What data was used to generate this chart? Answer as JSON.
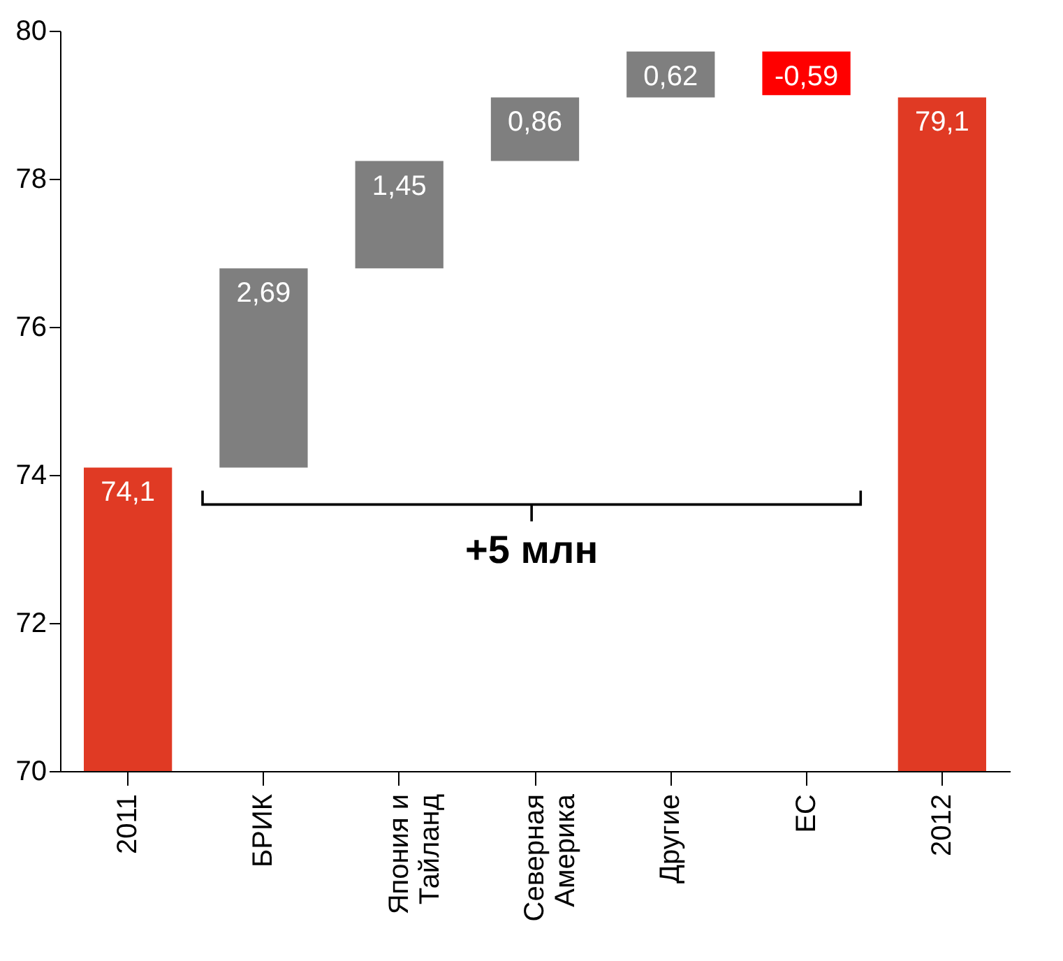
{
  "chart_data": {
    "type": "bar",
    "categories": [
      "2011",
      "БРИК",
      "Япония и\nТайланд",
      "Северная\nАмерика",
      "Другие",
      "ЕС",
      "2012"
    ],
    "base": [
      70,
      74.1,
      76.79,
      78.24,
      79.1,
      79.72,
      70
    ],
    "values": [
      4.1,
      2.69,
      1.45,
      0.86,
      0.62,
      -0.59,
      9.1
    ],
    "value_labels": [
      "74,1",
      "2,69",
      "1,45",
      "0,86",
      "0,62",
      "-0,59",
      "79,1"
    ],
    "colors": [
      "#e03a24",
      "#7f7f7f",
      "#7f7f7f",
      "#7f7f7f",
      "#7f7f7f",
      "#ff0000",
      "#e03a24"
    ],
    "ylim": [
      70,
      80
    ],
    "yticks": [
      70,
      72,
      74,
      76,
      78,
      80
    ],
    "grid": false,
    "annotations": [
      "+5 млн"
    ]
  }
}
